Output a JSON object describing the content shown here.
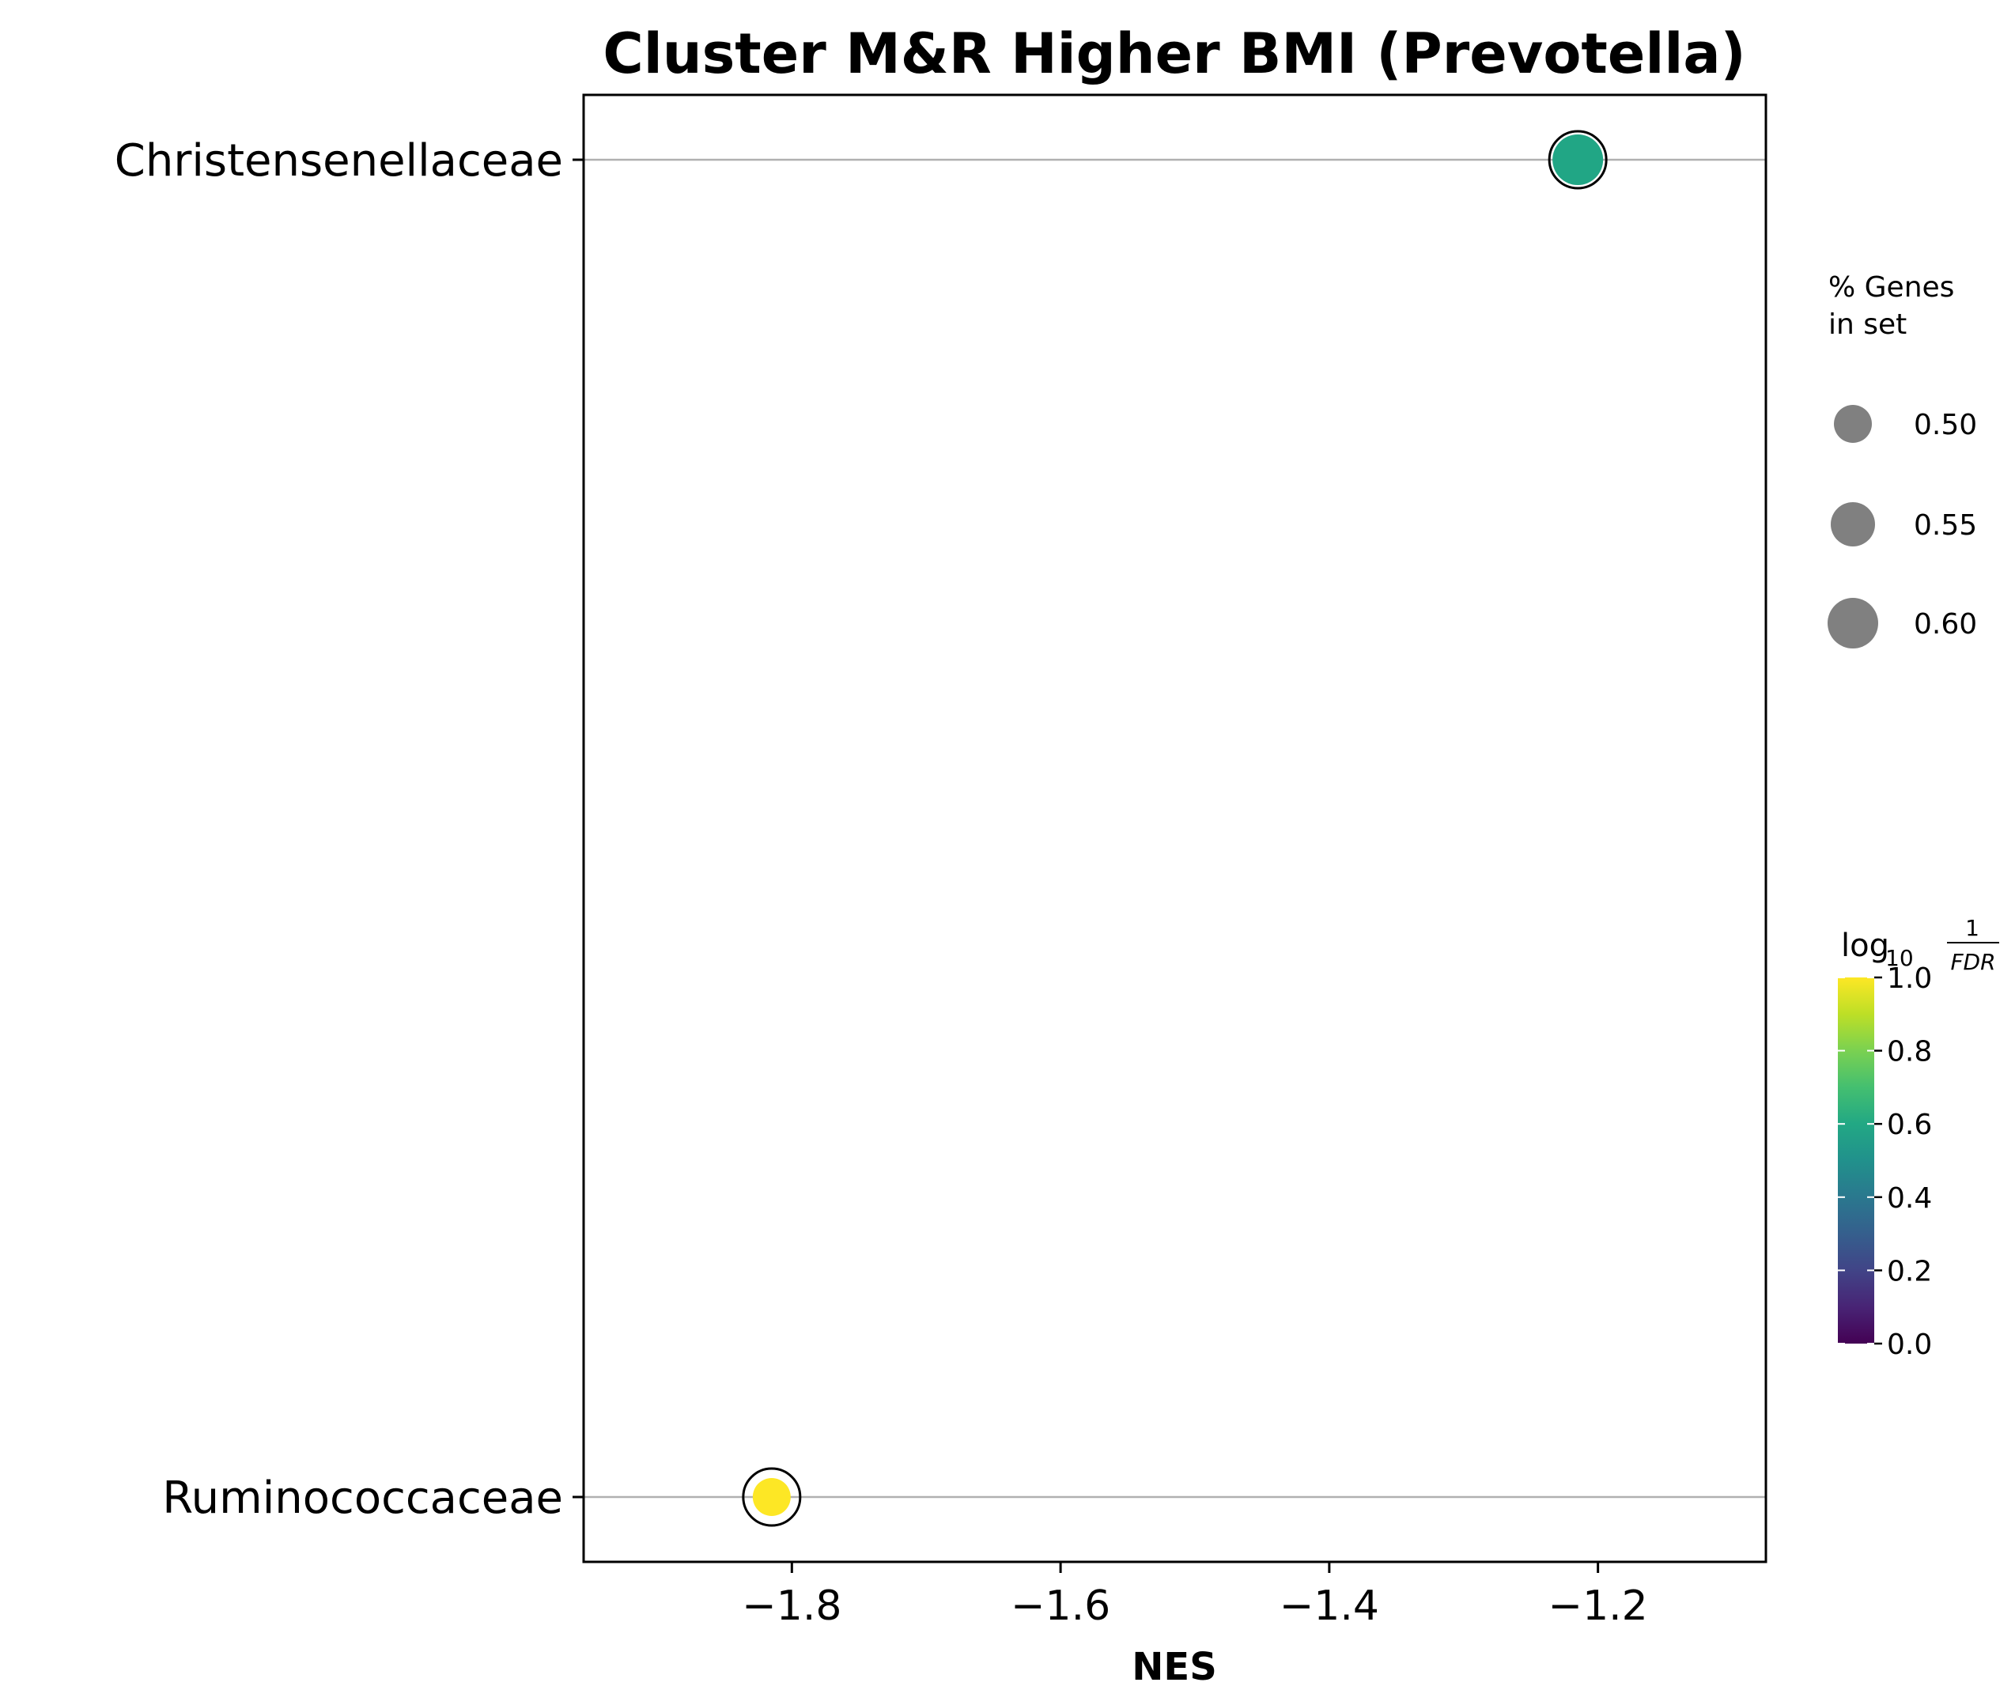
{
  "chart_data": {
    "type": "scatter",
    "title": "Cluster M&R Higher BMI (Prevotella)",
    "xlabel": "NES",
    "ylabel": "",
    "xlim": [
      -1.955,
      -1.075
    ],
    "xticks": [
      -1.8,
      -1.6,
      -1.4,
      -1.2
    ],
    "xtick_labels": [
      "−1.8",
      "−1.6",
      "−1.4",
      "−1.2"
    ],
    "categories": [
      "Christensenellaceae",
      "Ruminococcaceae"
    ],
    "points": [
      {
        "category": "Christensenellaceae",
        "nes": -1.215,
        "pct_genes": 0.6,
        "log10_inv_fdr": 0.62,
        "color": "#21a685"
      },
      {
        "category": "Ruminococcaceae",
        "nes": -1.815,
        "pct_genes": 0.5,
        "log10_inv_fdr": 1.0,
        "color": "#fde725"
      }
    ],
    "size_legend": {
      "title_line1": "% Genes",
      "title_line2": "in set",
      "entries": [
        {
          "value": 0.5,
          "label": "0.50"
        },
        {
          "value": 0.55,
          "label": "0.55"
        },
        {
          "value": 0.6,
          "label": "0.60"
        }
      ],
      "marker_color": "#808080"
    },
    "colorbar": {
      "title_main": "log",
      "title_sub": "10",
      "title_num": "1",
      "title_den": "FDR",
      "range": [
        0,
        1
      ],
      "colormap": "viridis",
      "ticks": [
        0.0,
        0.2,
        0.4,
        0.6,
        0.8,
        1.0
      ],
      "tick_labels": [
        "0.0",
        "0.2",
        "0.4",
        "0.6",
        "0.8",
        "1.0"
      ]
    },
    "grid": "horizontal",
    "legend_position": "right"
  }
}
